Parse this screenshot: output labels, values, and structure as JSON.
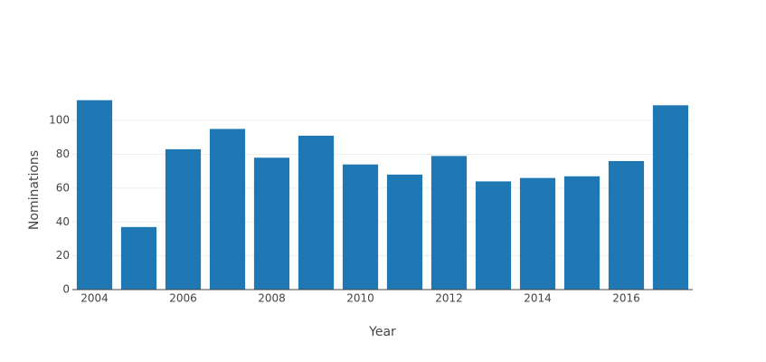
{
  "chart_data": {
    "type": "bar",
    "x": [
      2004,
      2005,
      2006,
      2007,
      2008,
      2009,
      2010,
      2011,
      2012,
      2013,
      2014,
      2015,
      2016,
      2017
    ],
    "values": [
      112,
      37,
      83,
      95,
      78,
      91,
      74,
      68,
      79,
      64,
      66,
      67,
      76,
      109
    ],
    "color": "#1f77b4",
    "xlabel": "Year",
    "ylabel": "Nominations",
    "xlim": [
      2003.5,
      2017.5
    ],
    "xticks": [
      2004,
      2006,
      2008,
      2010,
      2012,
      2014,
      2016
    ],
    "ylim": [
      0,
      118
    ],
    "yticks": [
      0,
      20,
      40,
      60,
      80,
      100
    ],
    "grid": true
  }
}
